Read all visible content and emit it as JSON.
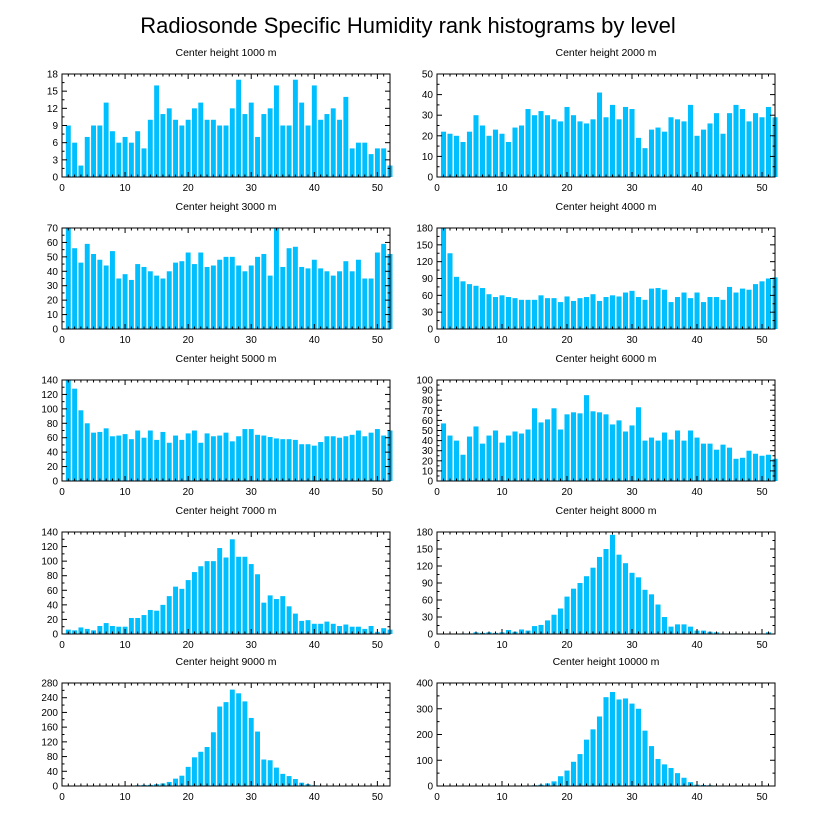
{
  "figure_title": "Radiosonde Specific Humidity rank histograms by level",
  "bar_color": "#00BFFF",
  "chart_data": [
    {
      "type": "bar",
      "title": "Center height 1000 m",
      "xlim": [
        0,
        52
      ],
      "xticks": [
        0,
        10,
        20,
        30,
        40,
        50
      ],
      "ylim": [
        0,
        18
      ],
      "yticks": [
        0,
        3,
        6,
        9,
        12,
        15,
        18
      ],
      "values": [
        9,
        6,
        2,
        7,
        9,
        9,
        13,
        8,
        6,
        7,
        6,
        8,
        5,
        10,
        16,
        11,
        12,
        10,
        9,
        10,
        12,
        13,
        10,
        10,
        9,
        9,
        12,
        17,
        11,
        13,
        7,
        11,
        12,
        16,
        9,
        9,
        17,
        13,
        9,
        16,
        10,
        11,
        12,
        10,
        14,
        5,
        6,
        6,
        4,
        5,
        5,
        2
      ]
    },
    {
      "type": "bar",
      "title": "Center height 2000 m",
      "xlim": [
        0,
        52
      ],
      "xticks": [
        0,
        10,
        20,
        30,
        40,
        50
      ],
      "ylim": [
        0,
        50
      ],
      "yticks": [
        0,
        10,
        20,
        30,
        40,
        50
      ],
      "values": [
        22,
        21,
        20,
        17,
        22,
        30,
        25,
        20,
        23,
        21,
        17,
        24,
        25,
        33,
        30,
        32,
        30,
        28,
        27,
        34,
        30,
        27,
        26,
        28,
        41,
        29,
        35,
        28,
        34,
        33,
        19,
        14,
        23,
        24,
        22,
        29,
        28,
        27,
        35,
        20,
        23,
        26,
        31,
        21,
        31,
        35,
        33,
        27,
        31,
        29,
        34,
        29
      ]
    },
    {
      "type": "bar",
      "title": "Center height 3000 m",
      "xlim": [
        0,
        52
      ],
      "xticks": [
        0,
        10,
        20,
        30,
        40,
        50
      ],
      "ylim": [
        0,
        70
      ],
      "yticks": [
        0,
        10,
        20,
        30,
        40,
        50,
        60,
        70
      ],
      "values": [
        70,
        56,
        46,
        59,
        52,
        48,
        44,
        54,
        35,
        38,
        34,
        45,
        43,
        40,
        37,
        35,
        40,
        46,
        47,
        53,
        45,
        53,
        43,
        44,
        48,
        50,
        50,
        44,
        40,
        44,
        50,
        52,
        37,
        70,
        43,
        56,
        57,
        43,
        42,
        48,
        42,
        40,
        37,
        40,
        47,
        40,
        48,
        35,
        35,
        53,
        59,
        52
      ]
    },
    {
      "type": "bar",
      "title": "Center height 4000 m",
      "xlim": [
        0,
        52
      ],
      "xticks": [
        0,
        10,
        20,
        30,
        40,
        50
      ],
      "ylim": [
        0,
        180
      ],
      "yticks": [
        0,
        30,
        60,
        90,
        120,
        150,
        180
      ],
      "values": [
        180,
        135,
        93,
        85,
        80,
        77,
        73,
        62,
        57,
        60,
        57,
        55,
        52,
        52,
        52,
        60,
        55,
        55,
        48,
        58,
        50,
        55,
        57,
        62,
        50,
        57,
        60,
        58,
        65,
        68,
        57,
        52,
        72,
        73,
        70,
        48,
        57,
        65,
        55,
        65,
        48,
        57,
        57,
        52,
        75,
        65,
        72,
        70,
        80,
        85,
        90,
        92
      ]
    },
    {
      "type": "bar",
      "title": "Center height 5000 m",
      "xlim": [
        0,
        52
      ],
      "xticks": [
        0,
        10,
        20,
        30,
        40,
        50
      ],
      "ylim": [
        0,
        140
      ],
      "yticks": [
        0,
        20,
        40,
        60,
        80,
        100,
        120,
        140
      ],
      "values": [
        140,
        128,
        98,
        80,
        67,
        68,
        73,
        62,
        63,
        65,
        58,
        70,
        60,
        70,
        57,
        68,
        53,
        63,
        57,
        66,
        70,
        53,
        66,
        62,
        63,
        67,
        55,
        62,
        72,
        72,
        64,
        63,
        61,
        59,
        58,
        58,
        57,
        51,
        51,
        49,
        54,
        62,
        62,
        60,
        62,
        64,
        70,
        62,
        67,
        72,
        63,
        70
      ]
    },
    {
      "type": "bar",
      "title": "Center height 6000 m",
      "xlim": [
        0,
        52
      ],
      "xticks": [
        0,
        10,
        20,
        30,
        40,
        50
      ],
      "ylim": [
        0,
        100
      ],
      "yticks": [
        0,
        10,
        20,
        30,
        40,
        50,
        60,
        70,
        80,
        90,
        100
      ],
      "values": [
        57,
        45,
        40,
        26,
        44,
        54,
        37,
        45,
        50,
        38,
        45,
        49,
        47,
        51,
        72,
        58,
        61,
        72,
        51,
        66,
        68,
        67,
        85,
        69,
        68,
        66,
        56,
        60,
        49,
        55,
        73,
        40,
        43,
        40,
        48,
        41,
        50,
        40,
        50,
        43,
        37,
        37,
        31,
        36,
        33,
        22,
        23,
        30,
        27,
        25,
        26,
        22
      ]
    },
    {
      "type": "bar",
      "title": "Center height 7000 m",
      "xlim": [
        0,
        52
      ],
      "xticks": [
        0,
        10,
        20,
        30,
        40,
        50
      ],
      "ylim": [
        0,
        140
      ],
      "yticks": [
        0,
        20,
        40,
        60,
        80,
        100,
        120,
        140
      ],
      "values": [
        6,
        5,
        9,
        7,
        5,
        11,
        15,
        11,
        10,
        10,
        22,
        22,
        26,
        33,
        32,
        40,
        52,
        65,
        62,
        74,
        85,
        93,
        100,
        100,
        118,
        105,
        130,
        106,
        106,
        96,
        82,
        43,
        53,
        48,
        52,
        38,
        28,
        18,
        19,
        14,
        14,
        17,
        14,
        11,
        13,
        10,
        10,
        7,
        11,
        3,
        8,
        6
      ]
    },
    {
      "type": "bar",
      "title": "Center height 8000 m",
      "xlim": [
        0,
        52
      ],
      "xticks": [
        0,
        10,
        20,
        30,
        40,
        50
      ],
      "ylim": [
        0,
        180
      ],
      "yticks": [
        0,
        30,
        60,
        90,
        120,
        150,
        180
      ],
      "values": [
        0,
        0,
        0,
        1,
        1,
        3,
        2,
        3,
        2,
        3,
        7,
        4,
        8,
        6,
        14,
        16,
        24,
        34,
        45,
        66,
        80,
        90,
        102,
        117,
        136,
        150,
        175,
        140,
        125,
        108,
        100,
        78,
        70,
        52,
        30,
        13,
        17,
        17,
        13,
        6,
        6,
        4,
        3,
        1,
        1,
        1,
        0,
        0,
        0,
        0,
        3,
        0
      ]
    },
    {
      "type": "bar",
      "title": "Center height 9000 m",
      "xlim": [
        0,
        52
      ],
      "xticks": [
        0,
        10,
        20,
        30,
        40,
        50
      ],
      "ylim": [
        0,
        280
      ],
      "yticks": [
        0,
        40,
        80,
        120,
        160,
        200,
        240,
        280
      ],
      "values": [
        0,
        0,
        0,
        0,
        0,
        0,
        0,
        0,
        0,
        0,
        1,
        2,
        3,
        3,
        5,
        7,
        11,
        20,
        28,
        52,
        78,
        93,
        106,
        146,
        216,
        228,
        262,
        252,
        230,
        185,
        148,
        72,
        70,
        50,
        33,
        27,
        19,
        9,
        5,
        2,
        1,
        1,
        0,
        0,
        0,
        0,
        0,
        0,
        0,
        0,
        0,
        0
      ]
    },
    {
      "type": "bar",
      "title": "Center height 10000 m",
      "xlim": [
        0,
        52
      ],
      "xticks": [
        0,
        10,
        20,
        30,
        40,
        50
      ],
      "ylim": [
        0,
        400
      ],
      "yticks": [
        0,
        100,
        200,
        300,
        400
      ],
      "values": [
        0,
        0,
        0,
        0,
        0,
        0,
        0,
        0,
        0,
        0,
        0,
        0,
        1,
        2,
        3,
        5,
        10,
        18,
        38,
        60,
        94,
        124,
        180,
        220,
        270,
        345,
        365,
        336,
        340,
        320,
        300,
        215,
        155,
        105,
        84,
        70,
        50,
        32,
        15,
        5,
        4,
        3,
        1,
        1,
        0,
        0,
        0,
        0,
        0,
        0,
        0,
        0
      ]
    }
  ]
}
